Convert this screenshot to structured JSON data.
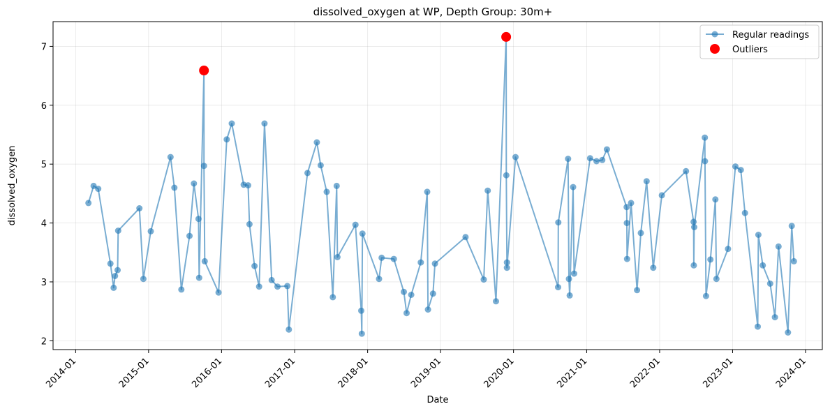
{
  "chart_data": {
    "type": "line",
    "title": "dissolved_oxygen at WP, Depth Group: 30m+",
    "xlabel": "Date",
    "ylabel": "dissolved_oxygen",
    "xlim": [
      "2013-09-10",
      "2024-03-25"
    ],
    "ylim": [
      1.85,
      7.42
    ],
    "x_ticks": [
      "2014-01",
      "2015-01",
      "2016-01",
      "2017-01",
      "2018-01",
      "2019-01",
      "2020-01",
      "2021-01",
      "2022-01",
      "2023-01",
      "2024-01"
    ],
    "y_ticks": [
      2,
      3,
      4,
      5,
      6,
      7
    ],
    "grid": true,
    "legend_position": "top-right",
    "series": [
      {
        "name": "Regular readings",
        "mode": "line+markers",
        "color": "#1f77b4",
        "points": [
          [
            "2014-03-06",
            4.34
          ],
          [
            "2014-04-01",
            4.63
          ],
          [
            "2014-04-24",
            4.58
          ],
          [
            "2014-06-24",
            3.31
          ],
          [
            "2014-07-10",
            2.9
          ],
          [
            "2014-07-17",
            3.1
          ],
          [
            "2014-07-30",
            3.2
          ],
          [
            "2014-08-02",
            3.87
          ],
          [
            "2014-11-16",
            4.25
          ],
          [
            "2014-12-06",
            3.05
          ],
          [
            "2015-01-12",
            3.86
          ],
          [
            "2015-04-21",
            5.12
          ],
          [
            "2015-05-10",
            4.6
          ],
          [
            "2015-06-14",
            2.87
          ],
          [
            "2015-07-25",
            3.78
          ],
          [
            "2015-08-16",
            4.67
          ],
          [
            "2015-09-08",
            4.07
          ],
          [
            "2015-09-11",
            3.07
          ],
          [
            "2015-10-05",
            6.59
          ],
          [
            "2015-10-05",
            4.97
          ],
          [
            "2015-10-09",
            3.35
          ],
          [
            "2015-12-17",
            2.82
          ],
          [
            "2016-01-27",
            5.42
          ],
          [
            "2016-02-21",
            5.69
          ],
          [
            "2016-04-21",
            4.65
          ],
          [
            "2016-05-13",
            4.64
          ],
          [
            "2016-05-20",
            3.98
          ],
          [
            "2016-06-14",
            3.27
          ],
          [
            "2016-07-07",
            2.92
          ],
          [
            "2016-08-03",
            5.69
          ],
          [
            "2016-09-08",
            3.03
          ],
          [
            "2016-10-07",
            2.92
          ],
          [
            "2016-11-25",
            2.93
          ],
          [
            "2016-12-03",
            2.19
          ],
          [
            "2017-03-06",
            4.85
          ],
          [
            "2017-04-22",
            5.37
          ],
          [
            "2017-05-11",
            4.98
          ],
          [
            "2017-06-10",
            4.53
          ],
          [
            "2017-07-11",
            2.74
          ],
          [
            "2017-07-30",
            4.63
          ],
          [
            "2017-08-03",
            3.42
          ],
          [
            "2017-11-01",
            3.97
          ],
          [
            "2017-11-30",
            2.51
          ],
          [
            "2017-12-03",
            2.12
          ],
          [
            "2017-12-06",
            3.82
          ],
          [
            "2018-02-27",
            3.05
          ],
          [
            "2018-03-12",
            3.41
          ],
          [
            "2018-05-12",
            3.39
          ],
          [
            "2018-07-01",
            2.83
          ],
          [
            "2018-07-15",
            2.47
          ],
          [
            "2018-08-07",
            2.78
          ],
          [
            "2018-09-24",
            3.33
          ],
          [
            "2018-10-26",
            4.53
          ],
          [
            "2018-10-30",
            2.53
          ],
          [
            "2018-11-24",
            2.8
          ],
          [
            "2018-12-04",
            3.31
          ],
          [
            "2019-05-06",
            3.76
          ],
          [
            "2019-08-05",
            3.04
          ],
          [
            "2019-08-25",
            4.55
          ],
          [
            "2019-10-05",
            2.67
          ],
          [
            "2019-11-25",
            7.16
          ],
          [
            "2019-11-26",
            4.81
          ],
          [
            "2019-11-29",
            3.33
          ],
          [
            "2019-11-29",
            3.24
          ],
          [
            "2020-01-11",
            5.12
          ],
          [
            "2020-08-11",
            2.91
          ],
          [
            "2020-08-12",
            4.01
          ],
          [
            "2020-09-30",
            5.09
          ],
          [
            "2020-10-04",
            3.05
          ],
          [
            "2020-10-08",
            2.77
          ],
          [
            "2020-10-25",
            4.61
          ],
          [
            "2020-10-30",
            3.14
          ],
          [
            "2021-01-18",
            5.1
          ],
          [
            "2021-02-19",
            5.05
          ],
          [
            "2021-03-20",
            5.07
          ],
          [
            "2021-04-12",
            5.25
          ],
          [
            "2021-07-20",
            4.27
          ],
          [
            "2021-07-21",
            4.0
          ],
          [
            "2021-07-22",
            3.39
          ],
          [
            "2021-08-11",
            4.34
          ],
          [
            "2021-09-10",
            2.86
          ],
          [
            "2021-09-29",
            3.83
          ],
          [
            "2021-10-28",
            4.71
          ],
          [
            "2021-11-30",
            3.24
          ],
          [
            "2022-01-12",
            4.47
          ],
          [
            "2022-05-13",
            4.88
          ],
          [
            "2022-06-20",
            4.02
          ],
          [
            "2022-06-21",
            3.28
          ],
          [
            "2022-06-23",
            3.93
          ],
          [
            "2022-08-15",
            5.45
          ],
          [
            "2022-08-16",
            5.05
          ],
          [
            "2022-08-21",
            2.76
          ],
          [
            "2022-09-12",
            3.38
          ],
          [
            "2022-10-07",
            4.4
          ],
          [
            "2022-10-12",
            3.05
          ],
          [
            "2022-12-09",
            3.56
          ],
          [
            "2023-01-15",
            4.96
          ],
          [
            "2023-02-11",
            4.9
          ],
          [
            "2023-03-04",
            4.17
          ],
          [
            "2023-05-07",
            2.24
          ],
          [
            "2023-05-10",
            3.8
          ],
          [
            "2023-06-01",
            3.28
          ],
          [
            "2023-07-08",
            2.97
          ],
          [
            "2023-08-01",
            2.4
          ],
          [
            "2023-08-19",
            3.6
          ],
          [
            "2023-10-05",
            2.14
          ],
          [
            "2023-10-24",
            3.95
          ],
          [
            "2023-11-04",
            3.35
          ]
        ]
      },
      {
        "name": "Outliers",
        "mode": "markers",
        "color": "#ff0000",
        "points": [
          [
            "2015-10-05",
            6.59
          ],
          [
            "2019-11-25",
            7.16
          ]
        ]
      }
    ]
  }
}
